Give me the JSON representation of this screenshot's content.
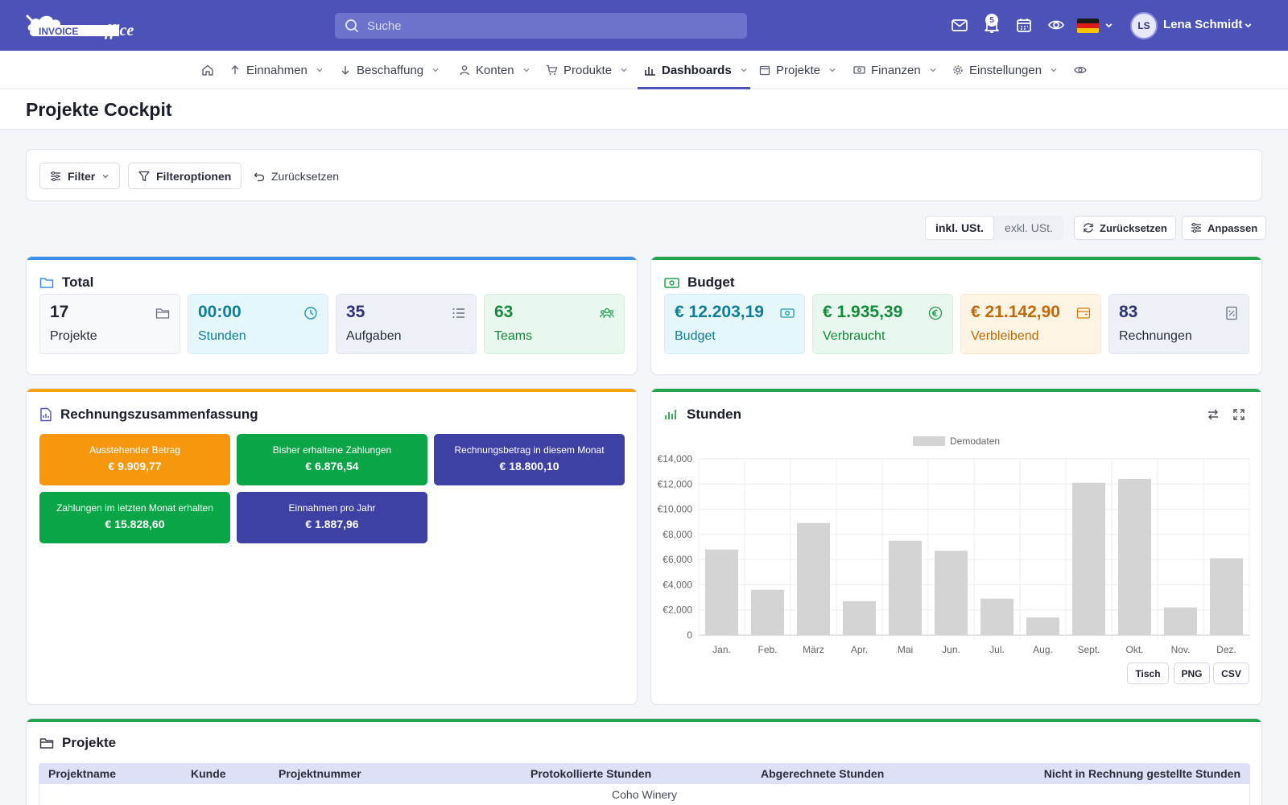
{
  "header": {
    "logo_text_a": "INVOICE",
    "logo_text_b": "office",
    "search_placeholder": "Suche",
    "notification_count": "5",
    "user_initials": "LS",
    "user_name": "Lena Schmidt",
    "brand_color": "#4d52b8"
  },
  "nav": {
    "items": [
      {
        "label": "Einnahmen",
        "icon": "arrow-up-icon"
      },
      {
        "label": "Beschaffung",
        "icon": "arrow-down-icon"
      },
      {
        "label": "Konten",
        "icon": "user-icon"
      },
      {
        "label": "Produkte",
        "icon": "cart-icon"
      },
      {
        "label": "Dashboards",
        "icon": "bar-chart-icon",
        "active": true
      },
      {
        "label": "Projekte",
        "icon": "calendar-icon"
      },
      {
        "label": "Finanzen",
        "icon": "money-icon"
      },
      {
        "label": "Einstellungen",
        "icon": "gear-icon"
      }
    ]
  },
  "page": {
    "title": "Projekte Cockpit"
  },
  "filters": {
    "filter_label": "Filter",
    "options_label": "Filteroptionen",
    "reset_label": "Zurücksetzen"
  },
  "toolbar": {
    "incl_vat": "inkl. USt.",
    "excl_vat": "exkl. USt.",
    "reset_label": "Zurücksetzen",
    "customize_label": "Anpassen"
  },
  "total": {
    "title": "Total",
    "tiles": [
      {
        "value": "17",
        "label": "Projekte"
      },
      {
        "value": "00:00",
        "label": "Stunden"
      },
      {
        "value": "35",
        "label": "Aufgaben"
      },
      {
        "value": "63",
        "label": "Teams"
      }
    ]
  },
  "budget": {
    "title": "Budget",
    "tiles": [
      {
        "value": "€ 12.203,19",
        "label": "Budget"
      },
      {
        "value": "€ 1.935,39",
        "label": "Verbraucht"
      },
      {
        "value": "€ 21.142,90",
        "label": "Verbleibend"
      },
      {
        "value": "83",
        "label": "Rechnungen"
      }
    ]
  },
  "summary": {
    "title": "Rechnungszusammenfassung",
    "boxes": [
      {
        "label": "Ausstehender Betrag",
        "value": "€ 9.909,77"
      },
      {
        "label": "Bisher erhaltene Zahlungen",
        "value": "€ 6.876,54"
      },
      {
        "label": "Rechnungsbetrag in diesem Monat",
        "value": "€ 18.800,10"
      },
      {
        "label": "Zahlungen im letzten Monat erhalten",
        "value": "€ 15.828,60"
      },
      {
        "label": "Einnahmen pro Jahr",
        "value": "€ 1.887,96"
      }
    ]
  },
  "hours": {
    "title": "Stunden",
    "btn_table": "Tisch",
    "btn_png": "PNG",
    "btn_csv": "CSV"
  },
  "chart_data": {
    "type": "bar",
    "categories": [
      "Jan.",
      "Feb.",
      "März",
      "Apr.",
      "Mai",
      "Jun.",
      "Jul.",
      "Aug.",
      "Sept.",
      "Okt.",
      "Nov.",
      "Dez."
    ],
    "series": [
      {
        "name": "Demodaten",
        "values": [
          6800,
          3600,
          8900,
          2700,
          7500,
          6700,
          2900,
          1400,
          12100,
          12400,
          2200,
          6100
        ],
        "color": "#d4d4d4"
      }
    ],
    "yticks": [
      "0",
      "€2,000",
      "€4,000",
      "€6,000",
      "€8,000",
      "€10,000",
      "€12,000",
      "€14,000"
    ],
    "ylim": [
      0,
      14000
    ],
    "grid": true,
    "legend": "top-center"
  },
  "projects": {
    "title": "Projekte",
    "columns": [
      "Projektname",
      "Kunde",
      "Projektnummer",
      "Protokollierte Stunden",
      "Abgerechnete Stunden",
      "Nicht in Rechnung gestellte Stunden"
    ],
    "rows": [
      {
        "group": "Coho Winery"
      }
    ]
  }
}
